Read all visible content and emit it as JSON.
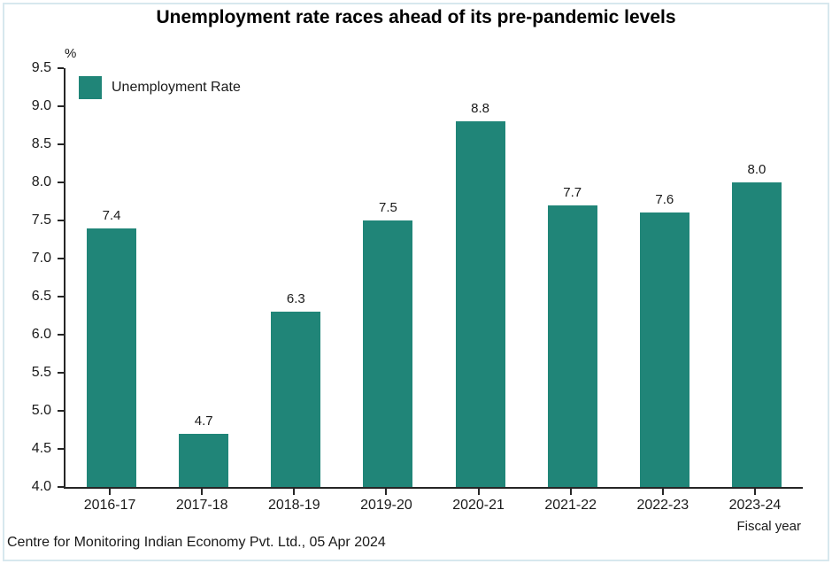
{
  "title": "Unemployment rate races ahead of its pre-pandemic levels",
  "legend": {
    "label": "Unemployment Rate"
  },
  "axes": {
    "y_unit_label": "%",
    "x_axis_label": "Fiscal year"
  },
  "footer": "Centre for Monitoring Indian Economy Pvt. Ltd., 05 Apr 2024",
  "colors": {
    "bar": "#208578",
    "axis": "#262626",
    "frame_border": "#d7e8ee",
    "text": "#1a1a1a"
  },
  "chart_data": {
    "type": "bar",
    "title": "Unemployment rate races ahead of its pre-pandemic levels",
    "categories": [
      "2016-17",
      "2017-18",
      "2018-19",
      "2019-20",
      "2020-21",
      "2021-22",
      "2022-23",
      "2023-24"
    ],
    "values": [
      7.4,
      4.7,
      6.3,
      7.5,
      8.8,
      7.7,
      7.6,
      8.0
    ],
    "series_name": "Unemployment Rate",
    "xlabel": "Fiscal year",
    "ylabel": "%",
    "ylim": [
      4.0,
      9.5
    ],
    "ytick_step": 0.5,
    "bar_color": "#208578",
    "grid": false,
    "data_labels": true,
    "legend_position": "top-left",
    "source": "Centre for Monitoring Indian Economy Pvt. Ltd., 05 Apr 2024"
  }
}
